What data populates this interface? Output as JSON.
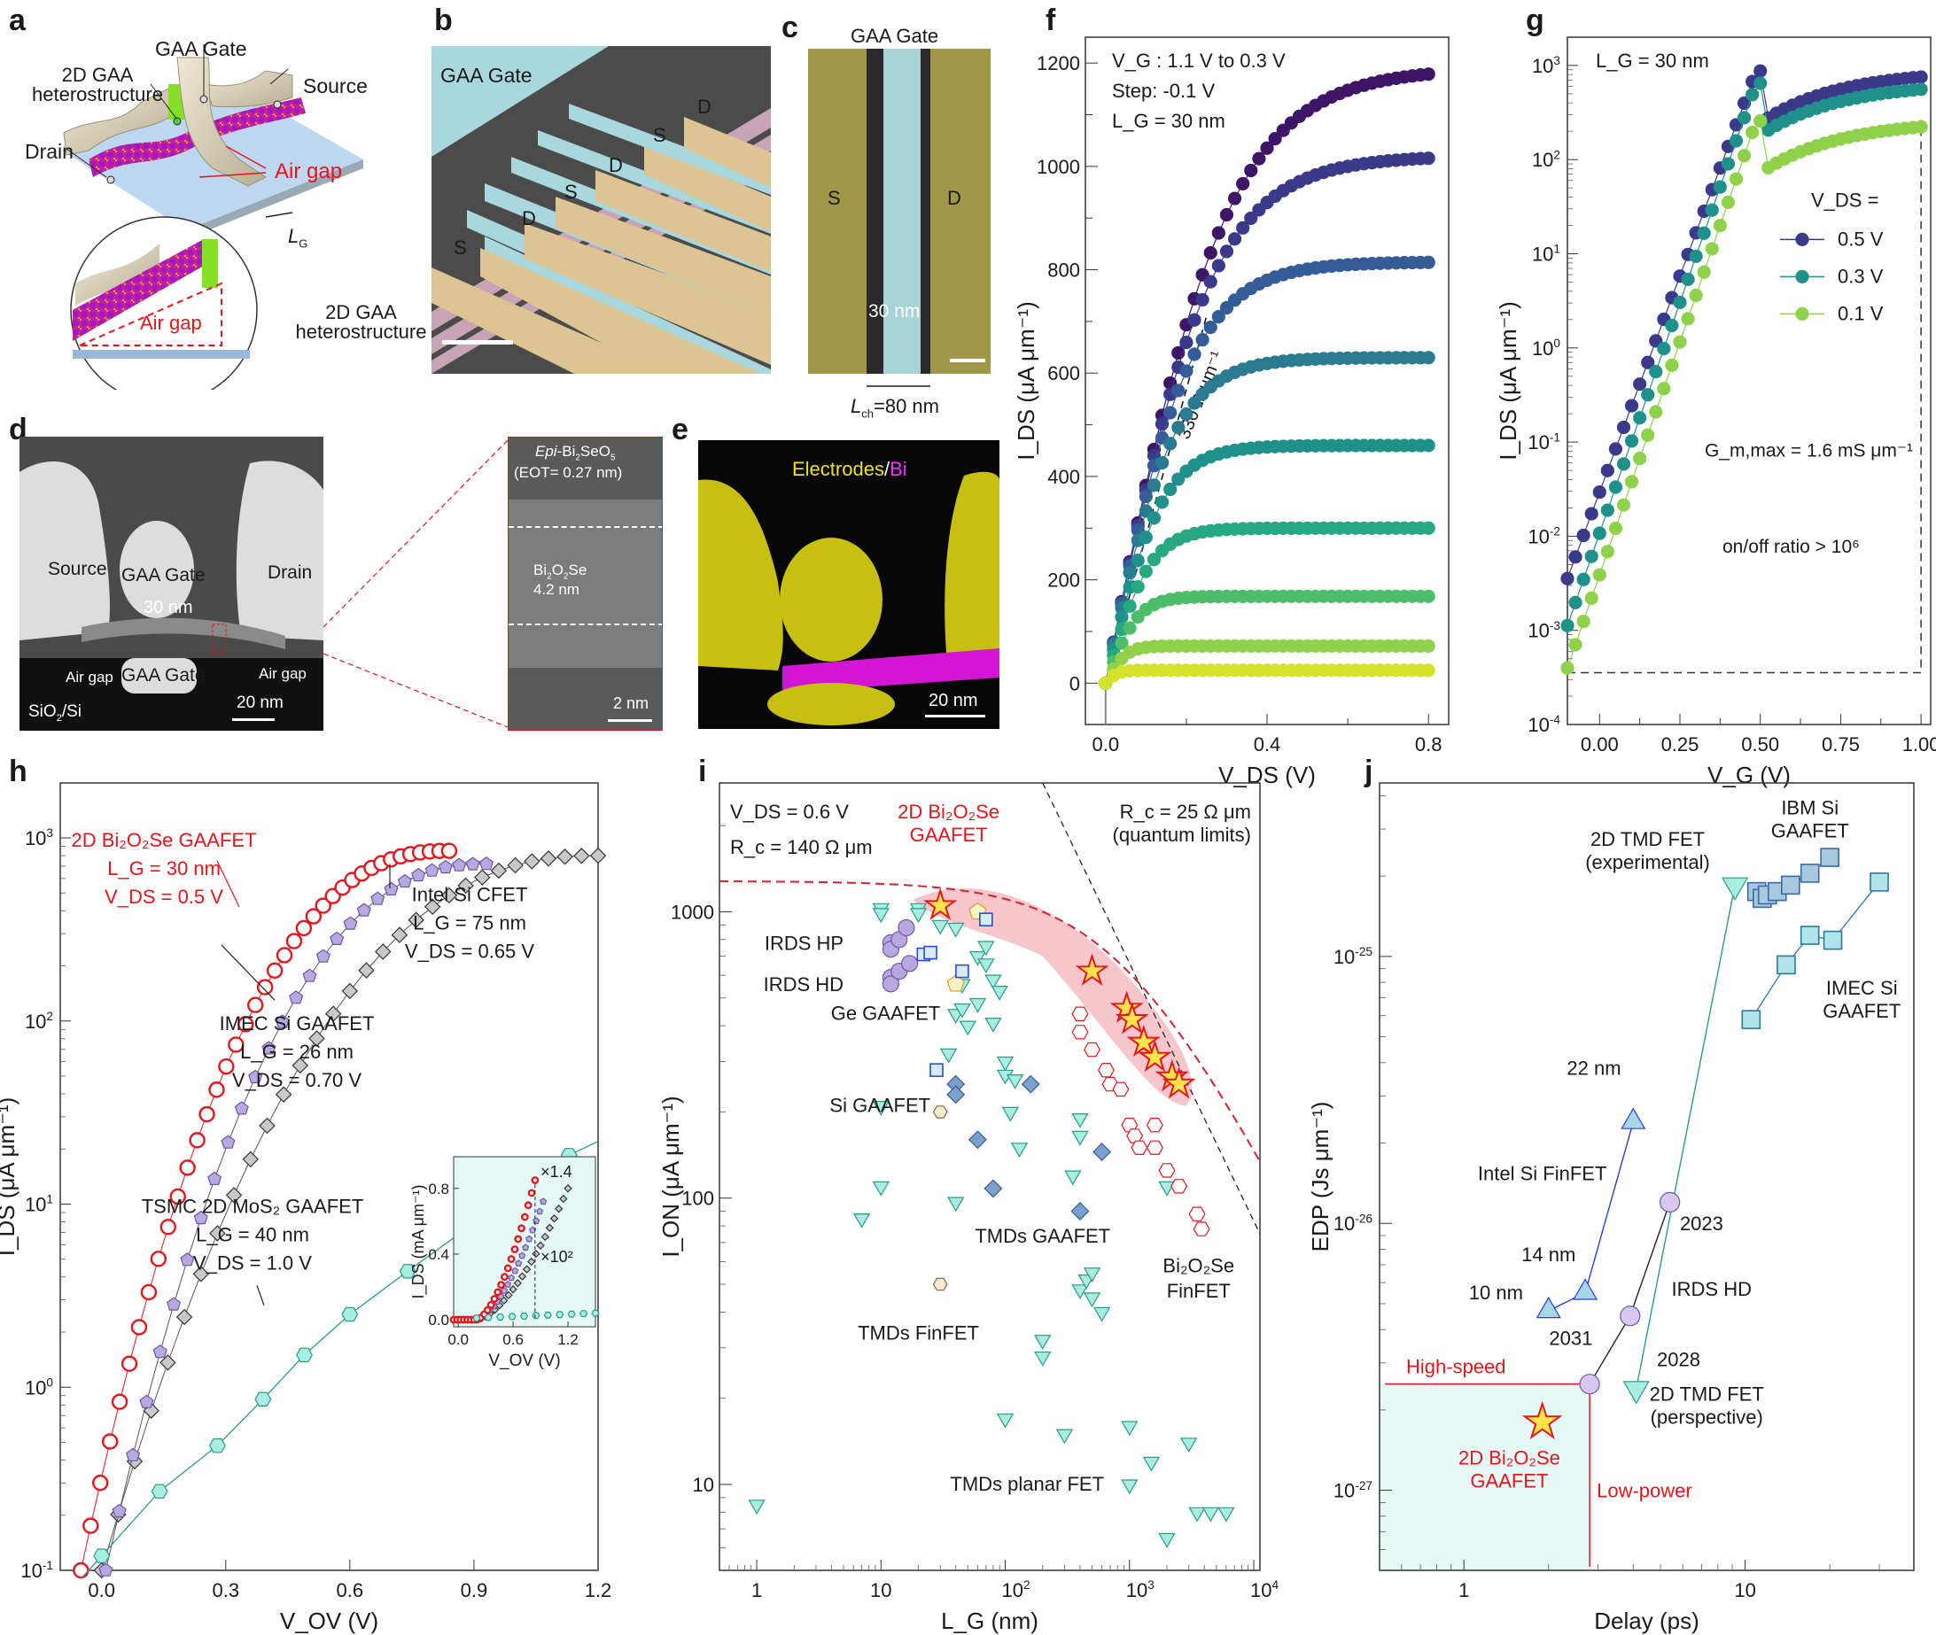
{
  "figure": {
    "panel_labels": [
      "a",
      "b",
      "c",
      "d",
      "e",
      "f",
      "g",
      "h",
      "i",
      "j"
    ]
  },
  "panel_a": {
    "labels": {
      "gaa_gate": "GAA Gate",
      "heterostructure": "2D GAA heterostructure",
      "source": "Source",
      "drain": "Drain",
      "air_gap": "Air gap",
      "air_gap_inset": "Air gap",
      "lg": "L",
      "lg_sub": "G"
    }
  },
  "panel_b": {
    "labels": {
      "gaa_gate": "GAA Gate",
      "heterostructure": "2D GAA heterostructure",
      "electrodes": [
        "D",
        "S",
        "D",
        "S",
        "D",
        "S"
      ]
    }
  },
  "panel_c": {
    "labels": {
      "gaa_gate": "GAA Gate",
      "s": "S",
      "d": "D",
      "width": "30 nm",
      "lch": "L",
      "lch_sub": "ch",
      "lch_value": "=80 nm"
    }
  },
  "panel_d": {
    "labels": {
      "source": "Source",
      "drain": "Drain",
      "gaa_gate_top": "GAA Gate",
      "gaa_gate_bottom": "GAA Gate",
      "width": "30 nm",
      "air_gap_left": "Air gap",
      "air_gap_right": "Air gap",
      "substrate": "SiO",
      "substrate_sub": "2",
      "substrate_rest": "/Si",
      "scale": "20 nm",
      "zoom_oxide_pre": "Epi",
      "zoom_oxide": "-Bi",
      "zoom_oxide_s1": "2",
      "zoom_oxide_mid": "SeO",
      "zoom_oxide_s2": "5",
      "zoom_eot": "(EOT= 0.27 nm)",
      "zoom_channel": "Bi",
      "zoom_channel_s1": "2",
      "zoom_channel_o": "O",
      "zoom_channel_s2": "2",
      "zoom_channel_se": "Se",
      "zoom_thickness": "4.2 nm",
      "zoom_scale": "2 nm"
    }
  },
  "panel_e": {
    "labels": {
      "electrodes": "Electrodes",
      "slash": "/",
      "bi": "Bi",
      "scale": "20 nm"
    }
  },
  "chart_data": [
    {
      "panel": "f",
      "type": "scatter",
      "title": "",
      "xlabel": "V_DS (V)",
      "ylabel": "I_DS (μA μm⁻¹)",
      "xlim": [
        -0.05,
        0.85
      ],
      "ylim": [
        -80,
        1250
      ],
      "xticks": [
        0.0,
        0.4,
        0.8
      ],
      "xtick_labels": [
        "0.0",
        "0.4",
        "0.8"
      ],
      "yticks": [
        0,
        200,
        400,
        600,
        800,
        1000,
        1200
      ],
      "ytick_labels": [
        "0",
        "200",
        "400",
        "600",
        "800",
        "1000",
        "1200"
      ],
      "annotations": [
        "V_G : 1.1 V to 0.3 V",
        "Step: -0.1 V",
        "L_G = 30 nm",
        "330 Ω μm⁻¹"
      ],
      "series": [
        {
          "name": "V_G = 1.1 V",
          "color": "#3f1567",
          "isat": 1190,
          "k": 0.3
        },
        {
          "name": "V_G = 1.0 V",
          "color": "#3b3a8a",
          "isat": 1020,
          "k": 0.26
        },
        {
          "name": "V_G = 0.9 V",
          "color": "#345c96",
          "isat": 815,
          "k": 0.21
        },
        {
          "name": "V_G = 0.8 V",
          "color": "#2a7a92",
          "isat": 630,
          "k": 0.17
        },
        {
          "name": "V_G = 0.7 V",
          "color": "#1f918a",
          "isat": 460,
          "k": 0.14
        },
        {
          "name": "V_G = 0.6 V",
          "color": "#26a882",
          "isat": 300,
          "k": 0.11
        },
        {
          "name": "V_G = 0.5 V",
          "color": "#4dbd6a",
          "isat": 168,
          "k": 0.08
        },
        {
          "name": "V_G = 0.4 V",
          "color": "#8fd14a",
          "isat": 72,
          "k": 0.05
        },
        {
          "name": "V_G = 0.3 V",
          "color": "#d4e22a",
          "isat": 25,
          "k": 0.03
        }
      ]
    },
    {
      "panel": "g",
      "type": "scatter",
      "xlabel": "V_G (V)",
      "ylabel": "I_DS (μA μm⁻¹)",
      "yscale": "log",
      "xlim": [
        -0.1,
        1.03
      ],
      "ylim_exp": [
        -4,
        3.3
      ],
      "xticks": [
        0.0,
        0.25,
        0.5,
        0.75,
        1.0
      ],
      "xtick_labels": [
        "0.00",
        "0.25",
        "0.50",
        "0.75",
        "1.00"
      ],
      "ytick_labels": [
        "10-4",
        "10-3",
        "10-2",
        "10-1",
        "100",
        "101",
        "102",
        "103"
      ],
      "annotations": [
        "L_G = 30 nm",
        "G_m,max = 1.6 mS μm⁻¹",
        "on/off ratio > 10⁶"
      ],
      "legend_title": "V_DS =",
      "legend_position": "center-right",
      "series": [
        {
          "name": "0.5 V",
          "color": "#3b3a8a",
          "log_start": -2.45,
          "log_end": 2.95
        },
        {
          "name": "0.3 V",
          "color": "#1f918a",
          "log_start": -2.95,
          "log_end": 2.82
        },
        {
          "name": "0.1 V",
          "color": "#8fd14a",
          "log_start": -3.4,
          "log_end": 2.42
        }
      ]
    },
    {
      "panel": "h",
      "type": "scatter",
      "xlabel": "V_OV (V)",
      "ylabel": "I_DS (μA μm⁻¹)",
      "yscale": "log",
      "xlim": [
        -0.1,
        1.2
      ],
      "ylim_exp": [
        -1,
        3.3
      ],
      "xticks": [
        0.0,
        0.3,
        0.6,
        0.9,
        1.2
      ],
      "xtick_labels": [
        "0.0",
        "0.3",
        "0.6",
        "0.9",
        "1.2"
      ],
      "ytick_labels": [
        "10-1",
        "100",
        "101",
        "102",
        "103"
      ],
      "series": [
        {
          "name": "2D Bi2O2Se GAAFET (L_G = 30 nm, V_DS = 0.5 V)",
          "color": "#e8141c",
          "marker": "open-circle",
          "x_end": 0.84,
          "y_end": 850
        },
        {
          "name": "IMEC Si GAAFET (L_G = 26 nm, V_DS = 0.70 V)",
          "color": "#b8a8e0",
          "marker": "pentagon",
          "x_end": 0.93,
          "y_end": 720
        },
        {
          "name": "Intel Si CFET (L_G = 75 nm, V_DS = 0.65 V)",
          "color": "#c8c8c8",
          "marker": "diamond",
          "x_end": 1.2,
          "y_end": 800
        },
        {
          "name": "TSMC 2D MoS2 GAAFET (L_G = 40 nm, V_DS = 1.0 V)",
          "color": "#a8ede0",
          "marker": "hexagon",
          "x": [
            0.0,
            0.14,
            0.28,
            0.39,
            0.49,
            0.6,
            0.74,
            0.88,
            0.99,
            1.13
          ],
          "y": [
            0.12,
            0.27,
            0.48,
            0.86,
            1.5,
            2.5,
            4.3,
            7.3,
            11.5,
            18.5
          ]
        }
      ],
      "inset": {
        "xlabel": "V_OV (V)",
        "ylabel": "I_DS (mA μm⁻¹)",
        "xtick_labels": [
          "0.0",
          "0.6",
          "1.2"
        ],
        "ytick_labels": [
          "0.0",
          "0.4",
          "0.8"
        ],
        "annotations": [
          "×1.4",
          "×10²"
        ]
      }
    },
    {
      "panel": "i",
      "type": "scatter",
      "xlabel": "L_G (nm)",
      "ylabel": "I_ON (μA μm⁻¹)",
      "xscale": "log",
      "yscale": "log",
      "xlim_exp": [
        -0.3,
        4.05
      ],
      "ylim_exp": [
        0.7,
        3.45
      ],
      "xtick_labels": [
        "1",
        "10",
        "102",
        "103",
        "104"
      ],
      "ytick_labels": [
        "10",
        "100",
        "1000"
      ],
      "annotations": [
        "V_DS = 0.6 V",
        "R_c = 140 Ω μm",
        "R_c = 25 Ω μm (quantum limits)"
      ],
      "labels": [
        "2D Bi2O2Se GAAFET",
        "IRDS HP",
        "IRDS HD",
        "Ge GAAFET",
        "Si GAAFET",
        "TMDs GAAFET",
        "TMDs FinFET",
        "TMDs planar FET",
        "Bi2O2Se FinFET"
      ],
      "series": [
        {
          "name": "2D Bi2O2Se GAAFET",
          "marker": "star",
          "color": "#ffe44a",
          "x": [
            30,
            500,
            950,
            1050,
            1300,
            1600,
            2200,
            2500
          ],
          "y": [
            1050,
            620,
            460,
            420,
            350,
            310,
            265,
            250
          ]
        },
        {
          "name": "Bi2O2Se FinFET",
          "marker": "open-hexagon",
          "color": "#e8141c",
          "x": [
            400,
            400,
            500,
            650,
            700,
            850,
            1000,
            1100,
            1200,
            1600,
            1600,
            2000,
            2500,
            3500,
            3800
          ],
          "y": [
            440,
            380,
            330,
            280,
            250,
            240,
            180,
            165,
            150,
            180,
            150,
            125,
            110,
            88,
            78
          ]
        },
        {
          "name": "IRDS HP",
          "marker": "circle",
          "color": "#b8a8e0",
          "x": [
            12,
            12,
            14,
            16
          ],
          "y": [
            780,
            740,
            800,
            880
          ]
        },
        {
          "name": "IRDS HD",
          "marker": "circle",
          "color": "#b8a8e0",
          "x": [
            12,
            12,
            14,
            17
          ],
          "y": [
            590,
            560,
            620,
            660
          ]
        },
        {
          "name": "Ge GAAFET",
          "marker": "pentagon",
          "color": "#f7f2c8",
          "x": [
            40,
            60
          ],
          "y": [
            560,
            1000
          ]
        },
        {
          "name": "Si GAAFET",
          "marker": "open-square",
          "color": "#2a4ad8",
          "x": [
            22,
            25,
            45,
            70,
            28
          ],
          "y": [
            710,
            720,
            620,
            940,
            280
          ]
        },
        {
          "name": "TMDs GAAFET",
          "marker": "diamond",
          "color": "#7aa0d0",
          "x": [
            40,
            40,
            60,
            80,
            160,
            400,
            600
          ],
          "y": [
            250,
            230,
            160,
            108,
            250,
            90,
            145
          ]
        },
        {
          "name": "TMDs FinFET",
          "marker": "hexagon",
          "color": "#f3ead0",
          "x": [
            30,
            30
          ],
          "y": [
            200,
            50
          ]
        },
        {
          "name": "TMDs planar FET",
          "marker": "down-triangle",
          "color": "#a8ede0",
          "x": [
            1,
            7,
            10,
            10,
            10,
            10,
            20,
            20,
            30,
            35,
            40,
            40,
            40,
            45,
            45,
            50,
            60,
            60,
            70,
            70,
            80,
            80,
            90,
            100,
            100,
            100,
            110,
            120,
            130,
            200,
            200,
            300,
            350,
            400,
            400,
            400,
            450,
            500,
            500,
            600,
            1000,
            1000,
            1500,
            2000,
            2000,
            3000,
            3500,
            4500,
            6000
          ],
          "y": [
            8.5,
            85,
            1030,
            990,
            210,
            110,
            1030,
            990,
            900,
            320,
            880,
            440,
            97,
            560,
            460,
            400,
            700,
            480,
            660,
            760,
            580,
            410,
            530,
            300,
            270,
            17,
            200,
            260,
            150,
            32,
            28,
            15,
            120,
            190,
            165,
            48,
            52,
            55,
            45,
            40,
            16,
            10,
            12,
            110,
            6.5,
            14,
            8,
            8,
            8
          ]
        }
      ]
    },
    {
      "panel": "j",
      "type": "scatter",
      "xlabel": "Delay (ps)",
      "ylabel": "EDP (Js μm⁻¹)",
      "xscale": "log",
      "yscale": "log",
      "xlim_exp": [
        -0.3,
        1.6
      ],
      "ylim_exp": [
        -27.3,
        -24.35
      ],
      "xtick_labels": [
        "1",
        "10"
      ],
      "ytick_labels": [
        "10-27",
        "10-26",
        "10-25"
      ],
      "annotations": [
        "High-speed",
        "Low-power"
      ],
      "series": [
        {
          "name": "2D Bi2O2Se GAAFET",
          "marker": "star",
          "color": "#ffe44a",
          "x": [
            1.9
          ],
          "y": [
            1.8e-27
          ]
        },
        {
          "name": "IRDS HD",
          "marker": "circle",
          "color": "#d8c8f0",
          "x": [
            2.8,
            3.9,
            5.4
          ],
          "y": [
            2.5e-27,
            4.5e-27,
            1.2e-26
          ],
          "point_labels": [
            "2031",
            "2028",
            "2023"
          ]
        },
        {
          "name": "Intel Si FinFET",
          "marker": "triangle",
          "color": "#a8d8e8",
          "x": [
            2.0,
            2.7,
            4.0
          ],
          "y": [
            4.7e-27,
            5.5e-27,
            2.4e-26
          ],
          "point_labels": [
            "10 nm",
            "14 nm",
            "22 nm"
          ]
        },
        {
          "name": "2D TMD FET",
          "marker": "down-triangle",
          "color": "#a8ede0",
          "x": [
            9.2,
            4.1
          ],
          "y": [
            1.85e-25,
            2.4e-27
          ],
          "point_labels": [
            "(experimental)",
            "(perspective)"
          ]
        },
        {
          "name": "IBM Si GAAFET",
          "marker": "square",
          "color": "#a8c8e0",
          "x": [
            11.0,
            11.5,
            12.0,
            13.0,
            14.5,
            17.0,
            20.0
          ],
          "y": [
            1.75e-25,
            1.65e-25,
            1.7e-25,
            1.75e-25,
            1.85e-25,
            2.05e-25,
            2.35e-25
          ]
        },
        {
          "name": "IMEC Si GAAFET",
          "marker": "square",
          "color": "#b0e4ea",
          "x": [
            10.5,
            14.0,
            17.0,
            20.5,
            30.0
          ],
          "y": [
            5.8e-26,
            9.3e-26,
            1.2e-25,
            1.15e-25,
            1.9e-25
          ]
        }
      ],
      "labels": [
        "2D TMD FET (experimental)",
        "IBM Si GAAFET",
        "IMEC Si GAAFET",
        "22 nm",
        "Intel Si FinFET",
        "14 nm",
        "10 nm",
        "2023",
        "IRDS HD",
        "2028",
        "2031",
        "2D TMD FET (perspective)",
        "2D Bi2O2Se GAAFET"
      ]
    }
  ]
}
